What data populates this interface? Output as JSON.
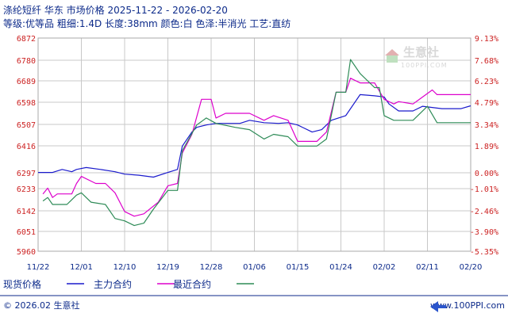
{
  "header": {
    "title": "涤纶短纤 华东 市场价格 2025-11-22 - 2026-02-20",
    "subtitle": "等级:优等品 粗细:1.4D 长度:38mm 颜色:白 色泽:半消光 工艺:直纺"
  },
  "watermark": {
    "name": "生意社",
    "url": "100PPI.COM"
  },
  "footer": {
    "copyright": "© 2026.02 生意社",
    "site": "www.100PPI.com"
  },
  "colors": {
    "spot": "#1a1acc",
    "main": "#dd00cc",
    "nearest": "#2e8b57",
    "axis_text": "#cc2222",
    "grid": "#c8c8c8"
  },
  "chart_data": {
    "type": "line",
    "title": "涤纶短纤 华东 市场价格 2025-11-22 - 2026-02-20",
    "x_ticks": [
      "11/22",
      "12/01",
      "12/10",
      "12/19",
      "12/28",
      "01/06",
      "01/15",
      "01/24",
      "02/02",
      "02/11",
      "02/20"
    ],
    "y_ticks": [
      "6872",
      "6780",
      "6689",
      "6598",
      "6507",
      "6416",
      "6297",
      "6233",
      "6142",
      "6051",
      "5960"
    ],
    "y_ticks_right": [
      "9.13%",
      "7.68%",
      "6.23%",
      "4.79%",
      "3.34%",
      "1.89%",
      "0.00%",
      "-1.01%",
      "-2.46%",
      "-3.90%",
      "-5.35%"
    ],
    "ylim": [
      5960,
      6872
    ],
    "xlim": [
      "11/22",
      "02/20"
    ],
    "grid": true,
    "legend_position": "bottom",
    "series": [
      {
        "name": "现货价格",
        "color": "#1a1acc",
        "points": [
          [
            "11/22",
            6297
          ],
          [
            "11/25",
            6297
          ],
          [
            "11/27",
            6310
          ],
          [
            "11/29",
            6300
          ],
          [
            "11/30",
            6310
          ],
          [
            "12/02",
            6318
          ],
          [
            "12/05",
            6310
          ],
          [
            "12/08",
            6300
          ],
          [
            "12/10",
            6290
          ],
          [
            "12/13",
            6285
          ],
          [
            "12/16",
            6277
          ],
          [
            "12/19",
            6297
          ],
          [
            "12/21",
            6310
          ],
          [
            "12/22",
            6410
          ],
          [
            "12/24",
            6470
          ],
          [
            "12/25",
            6490
          ],
          [
            "12/27",
            6500
          ],
          [
            "12/29",
            6507
          ],
          [
            "01/03",
            6507
          ],
          [
            "01/05",
            6520
          ],
          [
            "01/08",
            6510
          ],
          [
            "01/11",
            6507
          ],
          [
            "01/13",
            6510
          ],
          [
            "01/15",
            6500
          ],
          [
            "01/18",
            6470
          ],
          [
            "01/20",
            6480
          ],
          [
            "01/22",
            6520
          ],
          [
            "01/25",
            6540
          ],
          [
            "01/28",
            6630
          ],
          [
            "01/31",
            6625
          ],
          [
            "02/02",
            6620
          ],
          [
            "02/03",
            6590
          ],
          [
            "02/05",
            6560
          ],
          [
            "02/08",
            6560
          ],
          [
            "02/10",
            6580
          ],
          [
            "02/14",
            6570
          ],
          [
            "02/18",
            6570
          ],
          [
            "02/20",
            6582
          ]
        ]
      },
      {
        "name": "主力合约",
        "color": "#dd00cc",
        "points": [
          [
            "11/23",
            6205
          ],
          [
            "11/24",
            6230
          ],
          [
            "11/25",
            6190
          ],
          [
            "11/26",
            6205
          ],
          [
            "11/29",
            6205
          ],
          [
            "11/30",
            6250
          ],
          [
            "12/01",
            6280
          ],
          [
            "12/04",
            6250
          ],
          [
            "12/06",
            6250
          ],
          [
            "12/08",
            6210
          ],
          [
            "12/10",
            6130
          ],
          [
            "12/12",
            6110
          ],
          [
            "12/14",
            6120
          ],
          [
            "12/17",
            6170
          ],
          [
            "12/19",
            6240
          ],
          [
            "12/21",
            6250
          ],
          [
            "12/22",
            6380
          ],
          [
            "12/24",
            6460
          ],
          [
            "12/26",
            6610
          ],
          [
            "12/28",
            6610
          ],
          [
            "12/29",
            6530
          ],
          [
            "12/31",
            6550
          ],
          [
            "01/05",
            6550
          ],
          [
            "01/08",
            6520
          ],
          [
            "01/10",
            6540
          ],
          [
            "01/13",
            6520
          ],
          [
            "01/15",
            6430
          ],
          [
            "01/19",
            6430
          ],
          [
            "01/21",
            6470
          ],
          [
            "01/23",
            6640
          ],
          [
            "01/25",
            6640
          ],
          [
            "01/26",
            6700
          ],
          [
            "01/28",
            6680
          ],
          [
            "01/31",
            6680
          ],
          [
            "02/02",
            6610
          ],
          [
            "02/04",
            6590
          ],
          [
            "02/05",
            6600
          ],
          [
            "02/08",
            6590
          ],
          [
            "02/12",
            6650
          ],
          [
            "02/13",
            6630
          ],
          [
            "02/20",
            6630
          ]
        ]
      },
      {
        "name": "最近合约",
        "color": "#2e8b57",
        "points": [
          [
            "11/23",
            6175
          ],
          [
            "11/24",
            6190
          ],
          [
            "11/25",
            6160
          ],
          [
            "11/28",
            6160
          ],
          [
            "11/30",
            6200
          ],
          [
            "12/01",
            6210
          ],
          [
            "12/03",
            6170
          ],
          [
            "12/06",
            6160
          ],
          [
            "12/08",
            6100
          ],
          [
            "12/10",
            6090
          ],
          [
            "12/12",
            6070
          ],
          [
            "12/14",
            6080
          ],
          [
            "12/16",
            6140
          ],
          [
            "12/19",
            6220
          ],
          [
            "12/21",
            6220
          ],
          [
            "12/22",
            6390
          ],
          [
            "12/25",
            6500
          ],
          [
            "12/27",
            6530
          ],
          [
            "12/29",
            6507
          ],
          [
            "01/02",
            6490
          ],
          [
            "01/05",
            6480
          ],
          [
            "01/08",
            6440
          ],
          [
            "01/10",
            6460
          ],
          [
            "01/13",
            6450
          ],
          [
            "01/15",
            6410
          ],
          [
            "01/19",
            6410
          ],
          [
            "01/21",
            6440
          ],
          [
            "01/23",
            6640
          ],
          [
            "01/25",
            6640
          ],
          [
            "01/26",
            6780
          ],
          [
            "01/28",
            6720
          ],
          [
            "01/31",
            6660
          ],
          [
            "02/01",
            6660
          ],
          [
            "02/02",
            6540
          ],
          [
            "02/04",
            6520
          ],
          [
            "02/08",
            6520
          ],
          [
            "02/11",
            6580
          ],
          [
            "02/13",
            6510
          ],
          [
            "02/20",
            6510
          ]
        ]
      }
    ]
  }
}
